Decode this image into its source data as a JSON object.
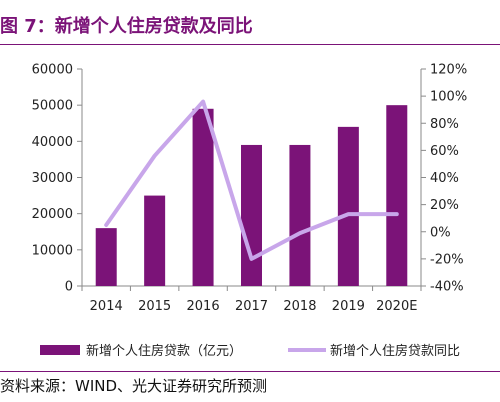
{
  "figure": {
    "title": "图 7：新增个人住房贷款及同比",
    "source": "资料来源：WIND、光大证券研究所预测"
  },
  "colors": {
    "bar": "#7b1378",
    "line": "#c8a6ea",
    "title": "#7b1378"
  },
  "chart_data": {
    "type": "bar",
    "categories": [
      "2014",
      "2015",
      "2016",
      "2017",
      "2018",
      "2019",
      "2020E"
    ],
    "series": [
      {
        "name": "新增个人住房贷款（亿元）",
        "type": "bar",
        "axis": "left",
        "values": [
          16000,
          25000,
          49000,
          39000,
          39000,
          44000,
          50000
        ]
      },
      {
        "name": "新增个人住房贷款同比",
        "type": "line",
        "axis": "right",
        "values": [
          5,
          56,
          96,
          -20,
          -1,
          13,
          13
        ]
      }
    ],
    "y_left": {
      "min": 0,
      "max": 60000,
      "ticks": [
        "0",
        "10000",
        "20000",
        "30000",
        "40000",
        "50000",
        "60000"
      ]
    },
    "y_right": {
      "min": -40,
      "max": 120,
      "ticks": [
        "-40%",
        "-20%",
        "0%",
        "20%",
        "40%",
        "60%",
        "80%",
        "100%",
        "120%"
      ]
    },
    "grid": false,
    "legend_position": "bottom"
  }
}
